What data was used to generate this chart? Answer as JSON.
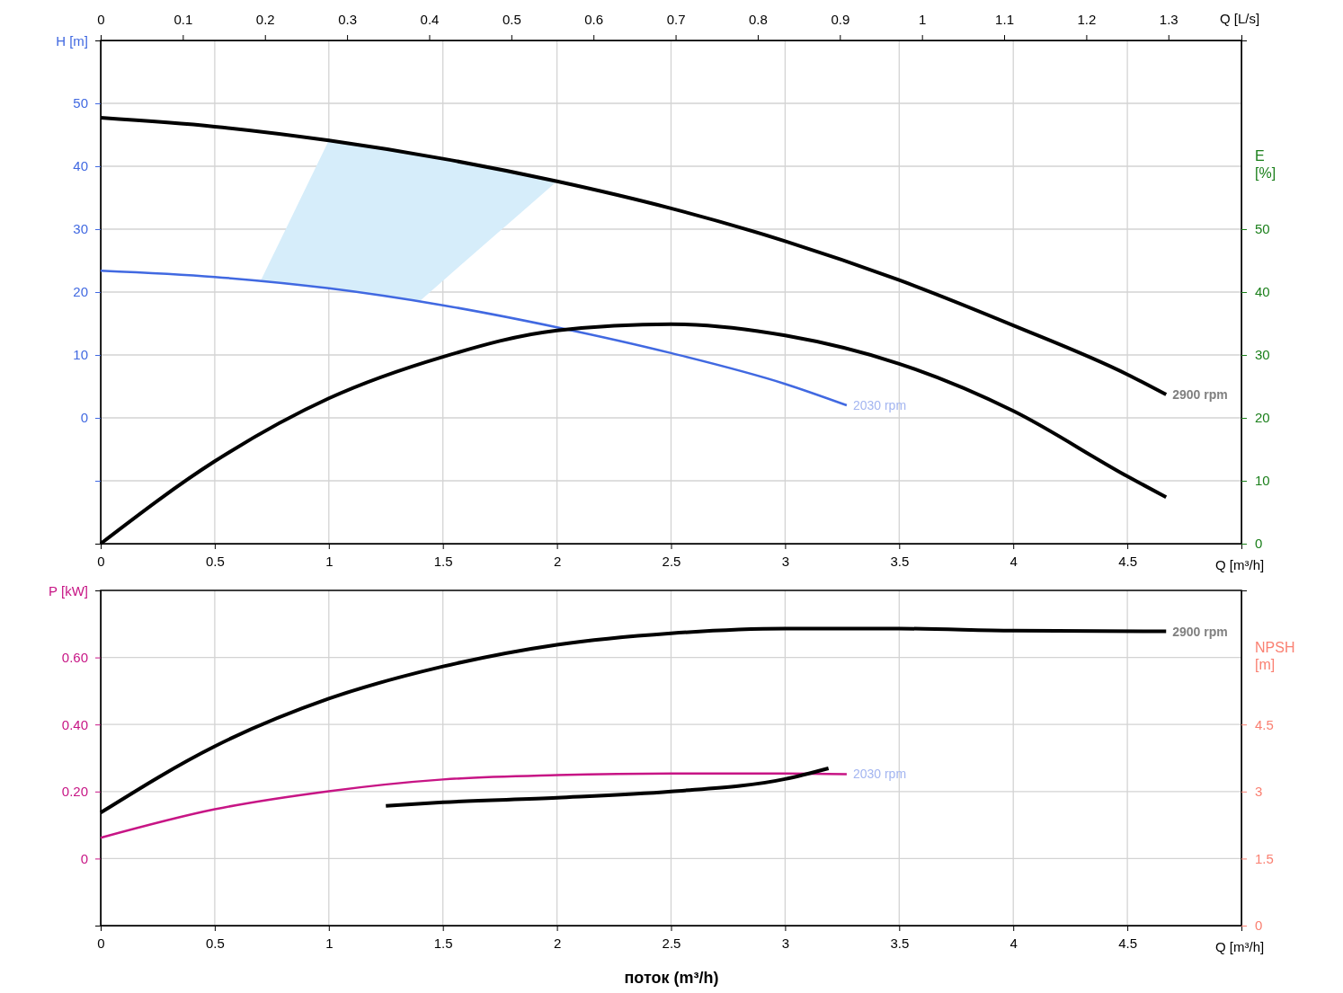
{
  "chart_data": [
    {
      "type": "line",
      "xlabel": "Q [m³/h]",
      "ylabel": "H [m]",
      "y2label": "E [%]",
      "x2label": "Q [L/s]",
      "xlim": [
        0,
        5
      ],
      "xticks": [
        0,
        0.5,
        1,
        1.5,
        2,
        2.5,
        3,
        3.5,
        4,
        4.5
      ],
      "x2lim": [
        0,
        1.3889
      ],
      "x2ticks": [
        0,
        0.1,
        0.2,
        0.3,
        0.4,
        0.5,
        0.6,
        0.7,
        0.8,
        0.9,
        1,
        1.1,
        1.2,
        1.3
      ],
      "ylim": [
        -20,
        60
      ],
      "yticks": [
        {
          "value": -10,
          "label": null
        },
        0,
        10,
        20,
        30,
        40,
        50
      ],
      "y2lim": [
        0,
        80
      ],
      "y2ticks": [
        0,
        10,
        20,
        30,
        40,
        50
      ],
      "grid": true,
      "series": [
        {
          "type": "area",
          "color": "#d6edfa",
          "x": [
            0.7,
            1.0,
            1.25,
            1.5,
            1.75,
            2.0,
            1.75,
            1.5,
            1.4,
            1.0
          ],
          "values": [
            21.7,
            44.1,
            42.8,
            41.2,
            39.6,
            37.6,
            29.7,
            21.8,
            18.6,
            20.6
          ]
        },
        {
          "name": "2900 rpm",
          "color": "#000000",
          "x": [
            0,
            0.5,
            1,
            1.5,
            2,
            2.5,
            3,
            3.5,
            4,
            4.5,
            4.67
          ],
          "values": [
            47.7,
            46.3,
            44.1,
            41.2,
            37.6,
            33.3,
            28.1,
            21.9,
            14.7,
            6.9,
            3.7
          ]
        },
        {
          "name": "2030 rpm",
          "color": "#4169e1",
          "x": [
            0,
            0.5,
            1,
            1.5,
            2,
            2.5,
            3,
            3.27
          ],
          "values": [
            23.4,
            22.4,
            20.6,
            17.9,
            14.4,
            10.3,
            5.4,
            2.0
          ]
        },
        {
          "color": "#000000",
          "axis": "y2",
          "x": [
            0,
            0.5,
            1,
            1.5,
            2,
            2.5,
            3,
            3.5,
            4,
            4.5,
            4.67
          ],
          "values": [
            0,
            13.1,
            23.1,
            29.7,
            33.9,
            34.9,
            33.1,
            28.6,
            21.1,
            10.7,
            7.4
          ]
        }
      ]
    },
    {
      "type": "line",
      "xlabel": "Q [m³/h]",
      "ylabel": "P [kW]",
      "y2label": "NPSH [m]",
      "xlim": [
        0,
        5
      ],
      "xticks": [
        0,
        0.5,
        1,
        1.5,
        2,
        2.5,
        3,
        3.5,
        4,
        4.5
      ],
      "ylim": [
        -0.2,
        0.8
      ],
      "yticks": [
        0,
        {
          "value": 0.2,
          "label": "0.20"
        },
        {
          "value": 0.4,
          "label": "0.40"
        },
        {
          "value": 0.6,
          "label": "0.60"
        }
      ],
      "y2lim": [
        0,
        7.5
      ],
      "y2ticks": [
        0,
        1.5,
        3,
        4.5
      ],
      "grid": true,
      "annotations": [
        "поток (m³/h)"
      ],
      "series": [
        {
          "name": "2900 rpm",
          "color": "#000000",
          "x": [
            0,
            0.5,
            1,
            1.5,
            2,
            2.5,
            3,
            3.5,
            4,
            4.67
          ],
          "values": [
            0.137,
            0.335,
            0.477,
            0.573,
            0.638,
            0.672,
            0.686,
            0.686,
            0.68,
            0.678
          ]
        },
        {
          "name": "2030 rpm",
          "color": "#c71585",
          "x": [
            0,
            0.5,
            1,
            1.5,
            2,
            2.5,
            3,
            3.27
          ],
          "values": [
            0.062,
            0.147,
            0.201,
            0.236,
            0.249,
            0.254,
            0.254,
            0.252
          ]
        },
        {
          "color": "#000000",
          "axis": "y2",
          "x": [
            1.25,
            1.5,
            2,
            2.5,
            3,
            3.19
          ],
          "values": [
            2.68,
            2.76,
            2.86,
            3.0,
            3.28,
            3.52
          ]
        }
      ]
    }
  ]
}
